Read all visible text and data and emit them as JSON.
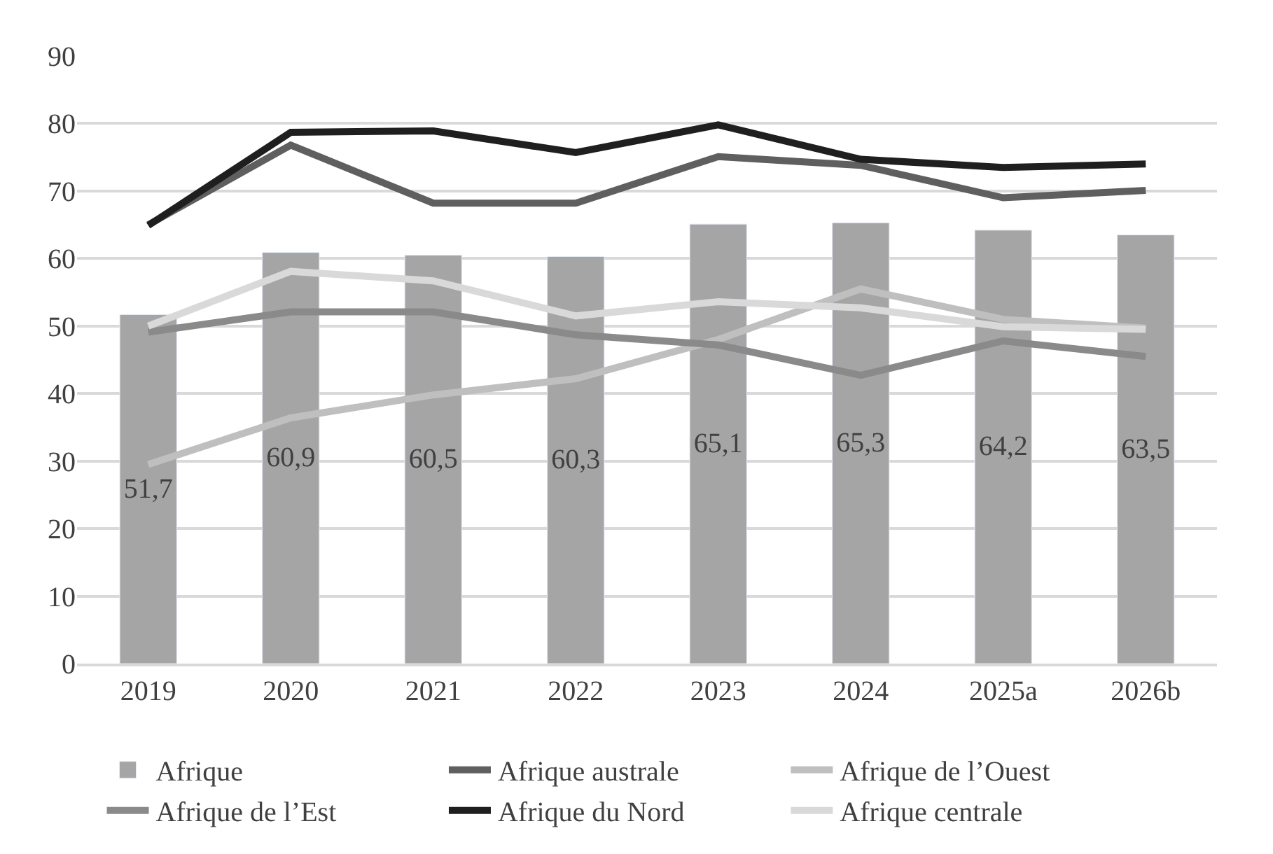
{
  "chart_data": {
    "type": "bar",
    "categories": [
      "2019",
      "2020",
      "2021",
      "2022",
      "2023",
      "2024",
      "2025a",
      "2026b"
    ],
    "series": [
      {
        "name": "Afrique",
        "color": "#a5a5a5",
        "values": [
          51.7,
          60.9,
          60.5,
          60.3,
          65.1,
          65.3,
          64.2,
          63.5
        ],
        "value_labels": [
          "51,7",
          "60,9",
          "60,5",
          "60,3",
          "65,1",
          "65,3",
          "64,2",
          "63,5"
        ]
      },
      {
        "name": "Afrique australe",
        "type": "line",
        "color": "#5f5f5f",
        "values": [
          65.0,
          76.8,
          68.2,
          68.2,
          75.1,
          73.8,
          69.0,
          70.1
        ]
      },
      {
        "name": "Afrique de l’Ouest",
        "type": "line",
        "color": "#bfbfbf",
        "values": [
          29.5,
          36.4,
          39.8,
          42.2,
          48.0,
          55.5,
          51.0,
          49.7
        ]
      },
      {
        "name": "Afrique de l’Est",
        "type": "line",
        "color": "#8a8a8a",
        "values": [
          49.1,
          52.1,
          52.1,
          48.7,
          47.2,
          42.7,
          47.8,
          45.5
        ]
      },
      {
        "name": "Afrique du Nord",
        "type": "line",
        "color": "#1f1f1f",
        "values": [
          64.9,
          78.7,
          78.9,
          75.7,
          79.8,
          74.7,
          73.5,
          74.0
        ]
      },
      {
        "name": "Afrique centrale",
        "type": "line",
        "color": "#d9d9d9",
        "values": [
          50.0,
          58.1,
          56.7,
          51.5,
          53.6,
          52.7,
          49.9,
          49.5
        ]
      }
    ],
    "ylim": [
      0,
      90
    ],
    "yticks": [
      0,
      10,
      20,
      30,
      40,
      50,
      60,
      70,
      80,
      90
    ],
    "grid": "y",
    "legend": "bottom",
    "marker": "none",
    "line_style": "solid"
  }
}
